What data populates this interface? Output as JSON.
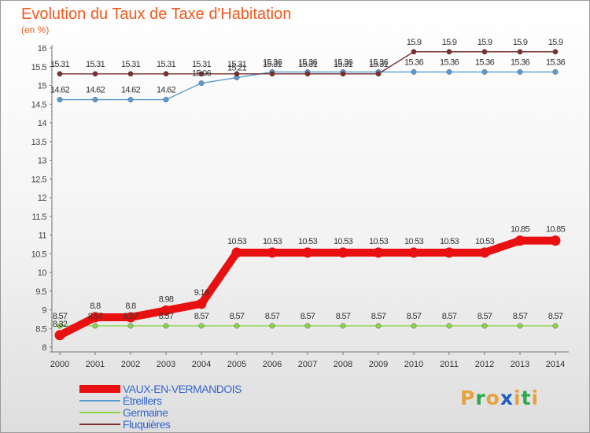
{
  "title": "Evolution du Taux de Taxe d'Habitation",
  "unit_label": "(en %)",
  "brand": {
    "letters": [
      "P",
      "r",
      "o",
      "x",
      "i",
      "t",
      "i"
    ],
    "colors": [
      "#e8a23b",
      "#2fa84f",
      "#e8a23b",
      "#1f5fbf",
      "#e8a23b",
      "#2fa84f",
      "#e8a23b"
    ]
  },
  "chart_data": {
    "type": "line",
    "title": "Evolution du Taux de Taxe d'Habitation",
    "ylabel": "(en %)",
    "xlabel": "",
    "x": [
      "2000",
      "2001",
      "2002",
      "2003",
      "2004",
      "2005",
      "2006",
      "2007",
      "2008",
      "2009",
      "2010",
      "2011",
      "2012",
      "2013",
      "2014"
    ],
    "ylim": [
      8,
      16
    ],
    "yticks": [
      "8",
      "8.5",
      "9",
      "9.5",
      "10",
      "10.5",
      "11",
      "11.5",
      "12",
      "12.5",
      "13",
      "13.5",
      "14",
      "14.5",
      "15",
      "15.5",
      "16"
    ],
    "grid": false,
    "legend": "bottom-left",
    "series": [
      {
        "name": "VAUX-EN-VERMANDOIS",
        "color": "#e81010",
        "values": [
          8.32,
          8.8,
          8.8,
          8.98,
          9.16,
          10.53,
          10.53,
          10.53,
          10.53,
          10.53,
          10.53,
          10.53,
          10.53,
          10.85,
          10.85
        ],
        "labels": [
          "8.32",
          "8.8",
          "8.8",
          "8.98",
          "9.16",
          "10.53",
          "10.53",
          "10.53",
          "10.53",
          "10.53",
          "10.53",
          "10.53",
          "10.53",
          "10.85",
          "10.85"
        ]
      },
      {
        "name": "Étreillers",
        "color": "#5a9bd3",
        "values": [
          14.62,
          14.62,
          14.62,
          14.62,
          15.06,
          15.21,
          15.36,
          15.36,
          15.36,
          15.36,
          15.36,
          15.36,
          15.36,
          15.36,
          15.36
        ],
        "labels": [
          "14.62",
          "14.62",
          "14.62",
          "14.62",
          "15.06",
          "15.21",
          "15.36",
          "15.36",
          "15.36",
          "15.36",
          "15.36",
          "15.36",
          "15.36",
          "15.36",
          "15.36"
        ]
      },
      {
        "name": "Germaine",
        "color": "#8cd44a",
        "values": [
          8.57,
          8.57,
          8.57,
          8.57,
          8.57,
          8.57,
          8.57,
          8.57,
          8.57,
          8.57,
          8.57,
          8.57,
          8.57,
          8.57,
          8.57
        ],
        "labels": [
          "8.57",
          "8.57",
          "8.57",
          "8.57",
          "8.57",
          "8.57",
          "8.57",
          "8.57",
          "8.57",
          "8.57",
          "8.57",
          "8.57",
          "8.57",
          "8.57",
          "8.57"
        ]
      },
      {
        "name": "Fluquières",
        "color": "#7a2e2e",
        "values": [
          15.31,
          15.31,
          15.31,
          15.31,
          15.31,
          15.31,
          15.31,
          15.31,
          15.31,
          15.31,
          15.9,
          15.9,
          15.9,
          15.9,
          15.9
        ],
        "labels": [
          "15.31",
          "15.31",
          "15.31",
          "15.31",
          "15.31",
          "15.31",
          "15.31",
          "15.31",
          "15.31",
          "15.31",
          "15.9",
          "15.9",
          "15.9",
          "15.9",
          "15.9"
        ]
      }
    ]
  }
}
